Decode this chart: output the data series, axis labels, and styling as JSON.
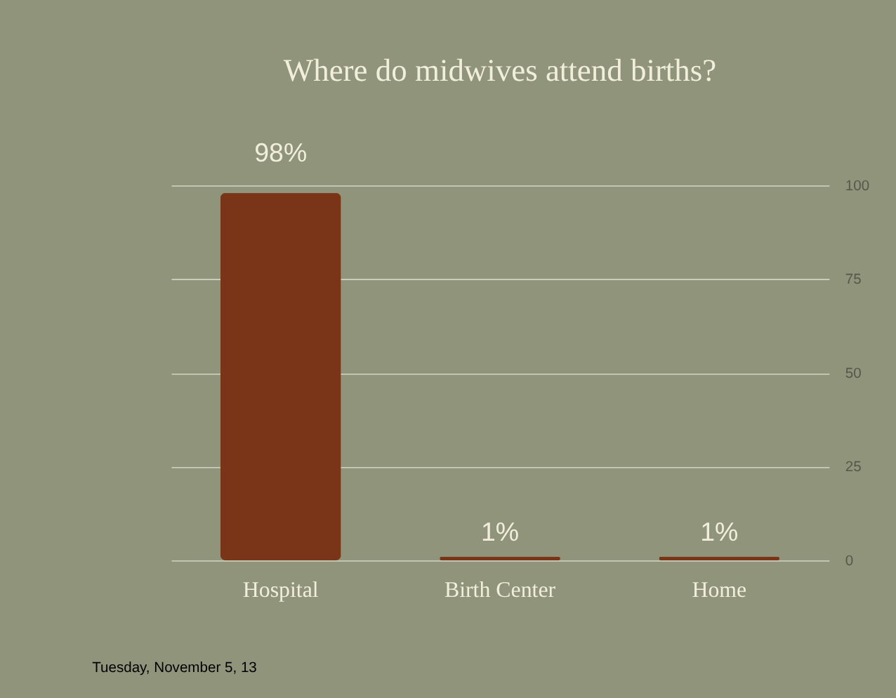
{
  "chart_data": {
    "type": "bar",
    "title": "Where do midwives attend births?",
    "categories": [
      "Hospital",
      "Birth Center",
      "Home"
    ],
    "values": [
      98,
      1,
      1
    ],
    "value_labels": [
      "98%",
      "1%",
      "1%"
    ],
    "color": "#7a3519",
    "ylim": [
      0,
      100
    ],
    "yticks": [
      0,
      25,
      50,
      75,
      100
    ],
    "grid": "y",
    "annotations": [
      "Tuesday, November 5, 13"
    ]
  }
}
